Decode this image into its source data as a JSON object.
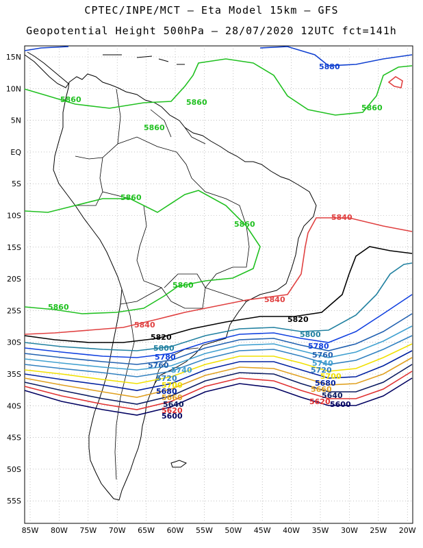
{
  "title_line1": "CPTEC/INPE/MCT –  Eta Model 15km – GFS",
  "title_line2": "Geopotential Height 500hPa – 28/07/2020 12UTC fct=141h",
  "lat_labels": [
    "15N",
    "10N",
    "5N",
    "EQ",
    "5S",
    "10S",
    "15S",
    "20S",
    "25S",
    "30S",
    "35S",
    "40S",
    "45S",
    "50S",
    "55S"
  ],
  "lon_labels": [
    "85W",
    "80W",
    "75W",
    "70W",
    "65W",
    "60W",
    "55W",
    "50W",
    "45W",
    "40W",
    "35W",
    "30W",
    "25W",
    "20W"
  ],
  "contour_colors": {
    "5600": "#000060",
    "5620": "#e03030",
    "5640": "#0a1a60",
    "5660": "#e0a020",
    "5680": "#0020a0",
    "5700": "#f0e000",
    "5720": "#3080c0",
    "5740": "#40a0d0",
    "5760": "#2060b0",
    "5780": "#1040e0",
    "5800": "#2080a0",
    "5820": "#000000",
    "5840": "#e04040",
    "5860": "#20c020",
    "5880": "#1040d0"
  },
  "contour_labels": [
    {
      "value": "5880",
      "color_key": "5880"
    },
    {
      "value": "5860",
      "color_key": "5860"
    },
    {
      "value": "5860",
      "color_key": "5860"
    },
    {
      "value": "5860",
      "color_key": "5860"
    },
    {
      "value": "5860",
      "color_key": "5860"
    },
    {
      "value": "5860",
      "color_key": "5860"
    },
    {
      "value": "5860",
      "color_key": "5860"
    },
    {
      "value": "5860",
      "color_key": "5860"
    },
    {
      "value": "5860",
      "color_key": "5860"
    },
    {
      "value": "5840",
      "color_key": "5840"
    },
    {
      "value": "5840",
      "color_key": "5840"
    },
    {
      "value": "5840",
      "color_key": "5840"
    },
    {
      "value": "5820",
      "color_key": "5820"
    },
    {
      "value": "5820",
      "color_key": "5820"
    },
    {
      "value": "5800",
      "color_key": "5800"
    },
    {
      "value": "5800",
      "color_key": "5800"
    },
    {
      "value": "5780",
      "color_key": "5780"
    },
    {
      "value": "5780",
      "color_key": "5780"
    },
    {
      "value": "5760",
      "color_key": "5760"
    },
    {
      "value": "5760",
      "color_key": "5760"
    },
    {
      "value": "5740",
      "color_key": "5740"
    },
    {
      "value": "5740",
      "color_key": "5740"
    },
    {
      "value": "5720",
      "color_key": "5720"
    },
    {
      "value": "5720",
      "color_key": "5720"
    },
    {
      "value": "5700",
      "color_key": "5700"
    },
    {
      "value": "5700",
      "color_key": "5700"
    },
    {
      "value": "5680",
      "color_key": "5680"
    },
    {
      "value": "5680",
      "color_key": "5680"
    },
    {
      "value": "5660",
      "color_key": "5660"
    },
    {
      "value": "5660",
      "color_key": "5660"
    },
    {
      "value": "5640",
      "color_key": "5640"
    },
    {
      "value": "5640",
      "color_key": "5640"
    },
    {
      "value": "5620",
      "color_key": "5620"
    },
    {
      "value": "5620",
      "color_key": "5620"
    },
    {
      "value": "5600",
      "color_key": "5600"
    },
    {
      "value": "5600",
      "color_key": "5600"
    }
  ]
}
